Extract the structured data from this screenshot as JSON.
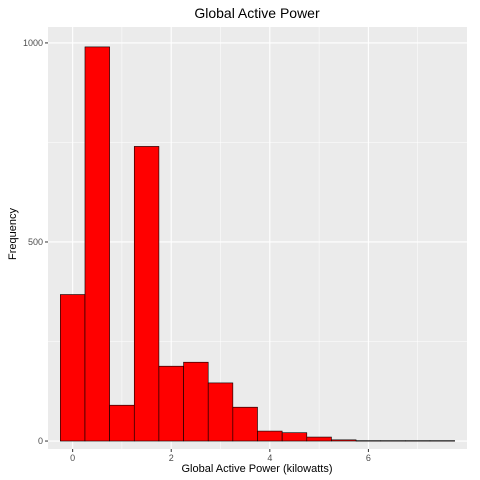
{
  "chart_data": {
    "type": "bar",
    "title": "Global Active Power",
    "xlabel": "Global Active Power (kilowatts)",
    "ylabel": "Frequency",
    "xlim": [
      -0.5,
      8.0
    ],
    "ylim": [
      -20,
      1040
    ],
    "x_ticks": [
      0,
      2,
      4,
      6
    ],
    "y_ticks": [
      0,
      500,
      1000
    ],
    "bin_width": 0.5,
    "bins": [
      {
        "start": -0.25,
        "count": 368
      },
      {
        "start": 0.25,
        "count": 990
      },
      {
        "start": 0.75,
        "count": 90
      },
      {
        "start": 1.25,
        "count": 740
      },
      {
        "start": 1.75,
        "count": 188
      },
      {
        "start": 2.25,
        "count": 198
      },
      {
        "start": 2.75,
        "count": 146
      },
      {
        "start": 3.25,
        "count": 85
      },
      {
        "start": 3.75,
        "count": 25
      },
      {
        "start": 4.25,
        "count": 21
      },
      {
        "start": 4.75,
        "count": 10
      },
      {
        "start": 5.25,
        "count": 3
      },
      {
        "start": 5.75,
        "count": 1
      },
      {
        "start": 6.25,
        "count": 1
      },
      {
        "start": 6.75,
        "count": 1
      },
      {
        "start": 7.25,
        "count": 1
      }
    ],
    "bar_fill": "#ff0000",
    "bar_stroke": "#000000",
    "panel_background": "#ebebeb",
    "grid_color": "#ffffff",
    "grid": true,
    "legend": "none"
  }
}
